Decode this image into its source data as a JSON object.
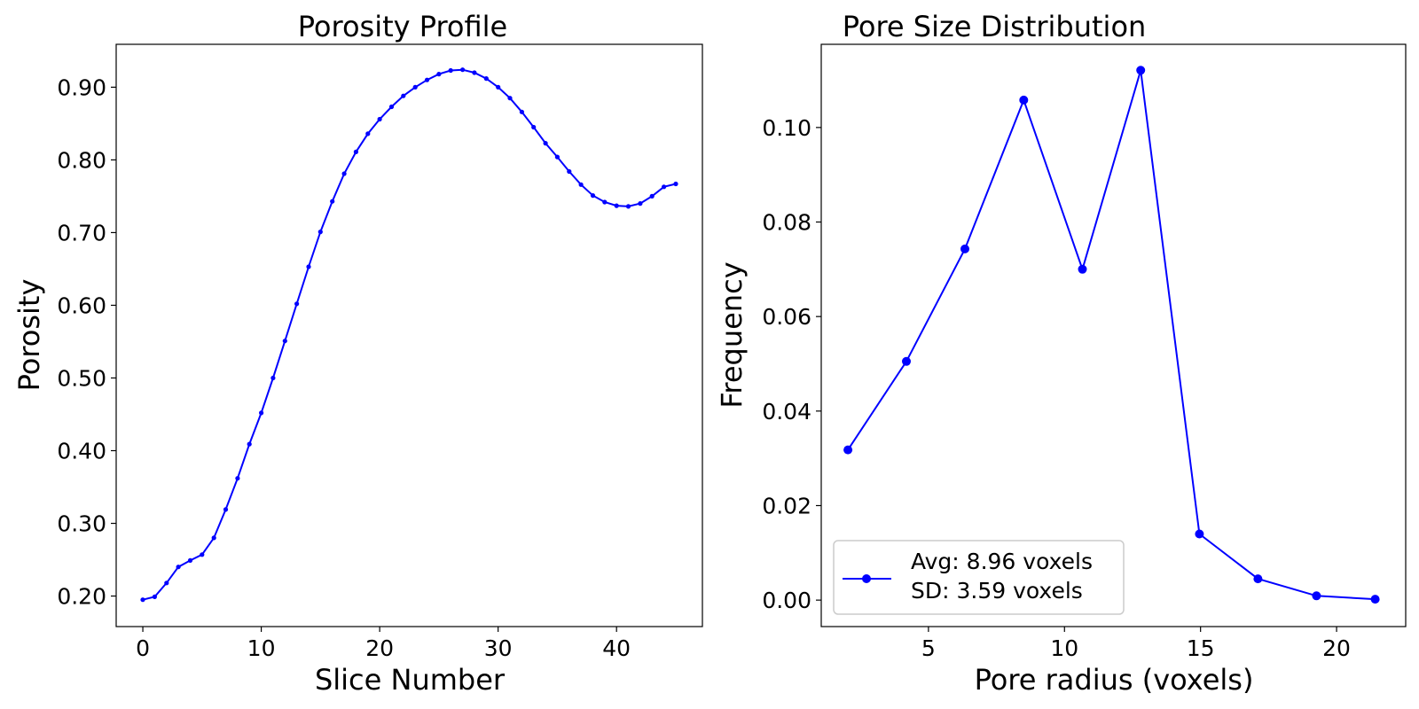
{
  "colors": {
    "series": "#0000ff",
    "axes": "#000000",
    "background": "#ffffff",
    "legend_border": "#cccccc"
  },
  "chart_data": [
    {
      "type": "line",
      "title": "Porosity Profile",
      "xlabel": "Slice Number",
      "ylabel": "Porosity",
      "xlim": [
        -2.25,
        47.25
      ],
      "ylim": [
        0.158,
        0.959
      ],
      "xticks": [
        0,
        10,
        20,
        30,
        40
      ],
      "xtick_labels": [
        "0",
        "10",
        "20",
        "30",
        "40"
      ],
      "yticks": [
        0.2,
        0.3,
        0.4,
        0.5,
        0.6,
        0.7,
        0.8,
        0.9
      ],
      "ytick_labels": [
        "0.20",
        "0.30",
        "0.40",
        "0.50",
        "0.60",
        "0.70",
        "0.80",
        "0.90"
      ],
      "grid": false,
      "series": [
        {
          "marker": "small-dot",
          "x": [
            0,
            1,
            2,
            3,
            4,
            5,
            6,
            7,
            8,
            9,
            10,
            11,
            12,
            13,
            14,
            15,
            16,
            17,
            18,
            19,
            20,
            21,
            22,
            23,
            24,
            25,
            26,
            27,
            28,
            29,
            30,
            31,
            32,
            33,
            34,
            35,
            36,
            37,
            38,
            39,
            40,
            41,
            42,
            43,
            44,
            45
          ],
          "y": [
            0.195,
            0.199,
            0.218,
            0.24,
            0.249,
            0.257,
            0.28,
            0.319,
            0.362,
            0.409,
            0.452,
            0.5,
            0.551,
            0.602,
            0.653,
            0.701,
            0.743,
            0.781,
            0.811,
            0.836,
            0.856,
            0.873,
            0.888,
            0.9,
            0.91,
            0.918,
            0.923,
            0.924,
            0.92,
            0.912,
            0.9,
            0.885,
            0.866,
            0.845,
            0.823,
            0.804,
            0.784,
            0.766,
            0.751,
            0.742,
            0.737,
            0.736,
            0.74,
            0.75,
            0.763,
            0.767
          ]
        }
      ]
    },
    {
      "type": "line",
      "title": "Pore Size Distribution",
      "xlabel": "Pore radius (voxels)",
      "ylabel": "Frequency",
      "xlim": [
        1.06,
        22.54
      ],
      "ylim": [
        -0.0056,
        0.1176
      ],
      "xticks": [
        5,
        10,
        15,
        20
      ],
      "xtick_labels": [
        "5",
        "10",
        "15",
        "20"
      ],
      "yticks": [
        0.0,
        0.02,
        0.04,
        0.06,
        0.08,
        0.1
      ],
      "ytick_labels": [
        "0.00",
        "0.02",
        "0.04",
        "0.06",
        "0.08",
        "0.10"
      ],
      "grid": false,
      "legend_position": "lower-left",
      "legend_lines": [
        "Avg: 8.96 voxels",
        "SD: 3.59 voxels"
      ],
      "series": [
        {
          "marker": "dot",
          "x": [
            2.04,
            4.19,
            6.34,
            8.5,
            10.66,
            12.8,
            14.96,
            17.11,
            19.26,
            21.42
          ],
          "y": [
            0.0318,
            0.0505,
            0.0743,
            0.1058,
            0.07,
            0.1121,
            0.014,
            0.0045,
            0.0009,
            0.0002
          ]
        }
      ]
    }
  ]
}
